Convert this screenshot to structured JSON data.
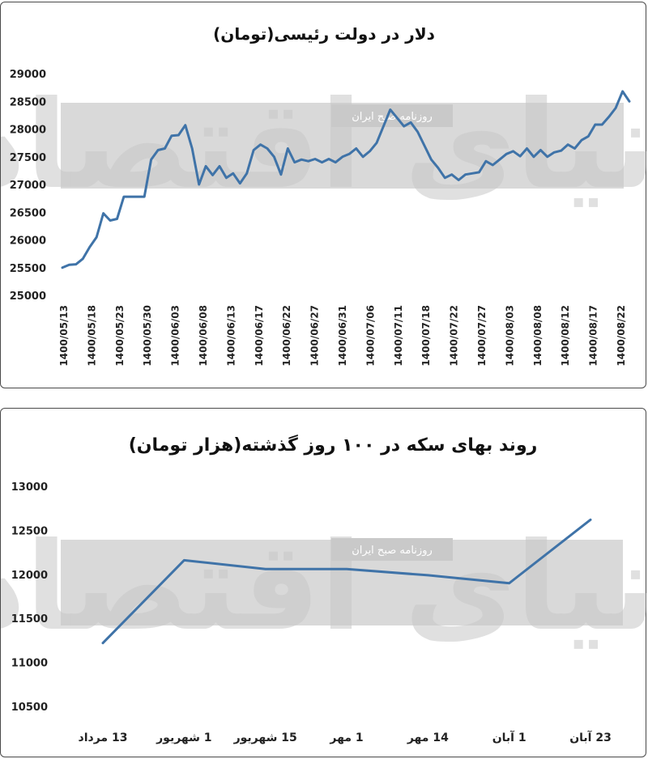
{
  "watermark": {
    "brand": "دنیای اقتصاد",
    "label": "روزنامه صبح ایران"
  },
  "chart_data": [
    {
      "type": "line",
      "title": "دلار در دولت رئیسی(تومان)",
      "ylim": [
        25000,
        29000
      ],
      "yticks": [
        "25000",
        "25500",
        "26000",
        "26500",
        "27000",
        "27500",
        "28000",
        "28500",
        "29000"
      ],
      "x_labels": [
        "1400/05/13",
        "1400/05/18",
        "1400/05/23",
        "1400/05/30",
        "1400/06/03",
        "1400/06/08",
        "1400/06/13",
        "1400/06/17",
        "1400/06/22",
        "1400/06/27",
        "1400/06/31",
        "1400/07/06",
        "1400/07/11",
        "1400/07/18",
        "1400/07/22",
        "1400/07/27",
        "1400/08/03",
        "1400/08/08",
        "1400/08/12",
        "1400/08/17",
        "1400/08/22"
      ],
      "values": [
        25500,
        25550,
        25560,
        25660,
        25870,
        26050,
        26480,
        26350,
        26380,
        26780,
        26780,
        26780,
        26780,
        27450,
        27620,
        27650,
        27880,
        27890,
        28070,
        27650,
        27000,
        27330,
        27170,
        27330,
        27120,
        27200,
        27020,
        27200,
        27620,
        27720,
        27650,
        27500,
        27180,
        27650,
        27400,
        27450,
        27420,
        27460,
        27400,
        27460,
        27400,
        27500,
        27550,
        27650,
        27500,
        27600,
        27750,
        28050,
        28350,
        28200,
        28050,
        28120,
        27950,
        27700,
        27450,
        27300,
        27120,
        27180,
        27080,
        27180,
        27200,
        27220,
        27420,
        27350,
        27450,
        27550,
        27600,
        27510,
        27650,
        27500,
        27620,
        27500,
        27580,
        27610,
        27720,
        27650,
        27800,
        27870,
        28080,
        28080,
        28220,
        28380,
        28680,
        28500
      ]
    },
    {
      "type": "line",
      "title": "روند بهای سکه در ۱۰۰ روز گذشته(هزار تومان)",
      "ylim": [
        10500,
        13000
      ],
      "yticks": [
        "10500",
        "11000",
        "11500",
        "12000",
        "12500",
        "13000"
      ],
      "categories": [
        "13 مرداد",
        "1 شهریور",
        "15 شهریور",
        "1 مهر",
        "14 مهر",
        "1 آبان",
        "23 آبان"
      ],
      "values": [
        11220,
        12160,
        12060,
        12060,
        11990,
        11900,
        12620
      ]
    }
  ]
}
